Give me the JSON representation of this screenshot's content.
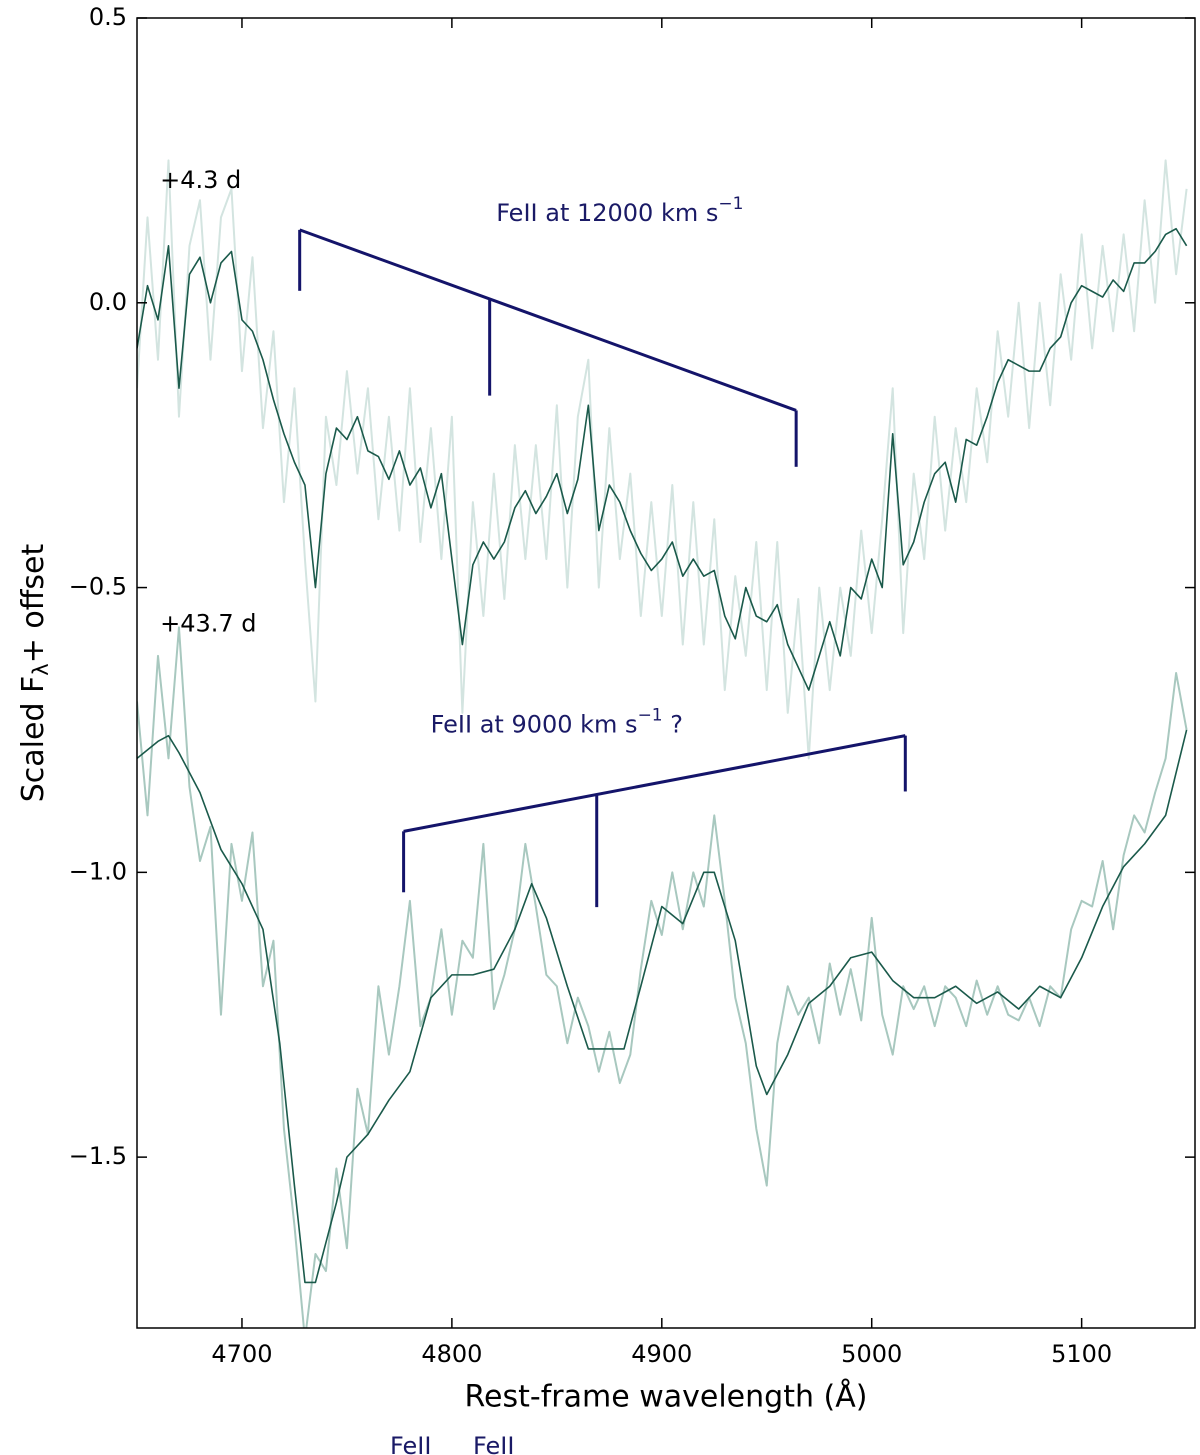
{
  "chart_data": {
    "type": "line",
    "xlabel": "Rest-frame wavelength (Å)",
    "ylabel": {
      "text": "Scaled F",
      "sub": "λ",
      "suffix": "+ offset"
    },
    "xlim": [
      4650,
      5154
    ],
    "ylim": [
      -1.8,
      0.5
    ],
    "xticks": [
      4700,
      4800,
      4900,
      5000,
      5100
    ],
    "yticks": [
      {
        "value": -1.5,
        "label": "−1.5"
      },
      {
        "value": -1.0,
        "label": "−1.0"
      },
      {
        "value": -0.5,
        "label": "−0.5"
      },
      {
        "value": 0,
        "label": "0.0"
      },
      0.5
    ],
    "x": [
      4650,
      4655,
      4660,
      4665,
      4670,
      4675,
      4680,
      4685,
      4690,
      4695,
      4700,
      4705,
      4710,
      4715,
      4720,
      4725,
      4730,
      4735,
      4740,
      4745,
      4750,
      4755,
      4760,
      4765,
      4770,
      4775,
      4780,
      4785,
      4790,
      4795,
      4800,
      4805,
      4810,
      4815,
      4820,
      4825,
      4830,
      4835,
      4840,
      4845,
      4850,
      4855,
      4860,
      4865,
      4870,
      4875,
      4880,
      4885,
      4890,
      4895,
      4900,
      4905,
      4910,
      4915,
      4920,
      4925,
      4930,
      4935,
      4940,
      4945,
      4950,
      4955,
      4960,
      4965,
      4970,
      4975,
      4980,
      4985,
      4990,
      4995,
      5000,
      5005,
      5010,
      5015,
      5020,
      5025,
      5030,
      5035,
      5040,
      5045,
      5050,
      5055,
      5060,
      5065,
      5070,
      5075,
      5080,
      5085,
      5090,
      5095,
      5100,
      5105,
      5110,
      5115,
      5120,
      5125,
      5130,
      5135,
      5140,
      5145,
      5150
    ],
    "series": [
      {
        "color": "#d3e4e0",
        "values": [
          -0.15,
          0.15,
          -0.1,
          0.25,
          -0.2,
          0.1,
          0.18,
          -0.1,
          0.15,
          0.2,
          -0.12,
          0.08,
          -0.22,
          -0.05,
          -0.35,
          -0.15,
          -0.45,
          -0.7,
          -0.2,
          -0.32,
          -0.12,
          -0.3,
          -0.15,
          -0.38,
          -0.2,
          -0.4,
          -0.15,
          -0.42,
          -0.22,
          -0.45,
          -0.2,
          -0.72,
          -0.35,
          -0.55,
          -0.3,
          -0.52,
          -0.25,
          -0.45,
          -0.25,
          -0.45,
          -0.18,
          -0.5,
          -0.2,
          -0.1,
          -0.5,
          -0.22,
          -0.45,
          -0.3,
          -0.55,
          -0.35,
          -0.55,
          -0.32,
          -0.6,
          -0.35,
          -0.6,
          -0.38,
          -0.68,
          -0.48,
          -0.62,
          -0.42,
          -0.68,
          -0.42,
          -0.72,
          -0.52,
          -0.8,
          -0.5,
          -0.68,
          -0.5,
          -0.62,
          -0.4,
          -0.58,
          -0.38,
          -0.15,
          -0.58,
          -0.3,
          -0.45,
          -0.2,
          -0.4,
          -0.22,
          -0.35,
          -0.15,
          -0.28,
          -0.05,
          -0.2,
          0.0,
          -0.22,
          0.0,
          -0.18,
          0.05,
          -0.1,
          0.12,
          -0.08,
          0.1,
          -0.05,
          0.12,
          -0.05,
          0.18,
          0.0,
          0.25,
          0.05,
          0.2
        ]
      },
      {
        "color": "#a8c8bf",
        "values": [
          -0.7,
          -0.9,
          -0.62,
          -0.8,
          -0.57,
          -0.85,
          -0.98,
          -0.92,
          -1.25,
          -0.95,
          -1.05,
          -0.93,
          -1.2,
          -1.12,
          -1.45,
          -1.62,
          -1.82,
          -1.67,
          -1.7,
          -1.52,
          -1.66,
          -1.38,
          -1.46,
          -1.2,
          -1.32,
          -1.2,
          -1.05,
          -1.27,
          -1.22,
          -1.1,
          -1.25,
          -1.12,
          -1.15,
          -0.95,
          -1.24,
          -1.18,
          -1.1,
          -0.95,
          -1.06,
          -1.18,
          -1.2,
          -1.3,
          -1.22,
          -1.27,
          -1.35,
          -1.28,
          -1.37,
          -1.32,
          -1.17,
          -1.05,
          -1.11,
          -1.0,
          -1.1,
          -1.0,
          -1.06,
          -0.9,
          -1.05,
          -1.22,
          -1.3,
          -1.45,
          -1.55,
          -1.3,
          -1.2,
          -1.25,
          -1.22,
          -1.3,
          -1.16,
          -1.25,
          -1.17,
          -1.26,
          -1.08,
          -1.25,
          -1.32,
          -1.2,
          -1.24,
          -1.2,
          -1.27,
          -1.2,
          -1.22,
          -1.27,
          -1.19,
          -1.25,
          -1.2,
          -1.25,
          -1.26,
          -1.22,
          -1.27,
          -1.2,
          -1.22,
          -1.1,
          -1.05,
          -1.06,
          -0.98,
          -1.1,
          -0.97,
          -0.9,
          -0.93,
          -0.86,
          -0.8,
          -0.65,
          -0.75
        ]
      },
      {
        "color": "#1b5a4b",
        "values": [
          -0.08,
          0.03,
          -0.03,
          0.1,
          -0.15,
          0.05,
          0.08,
          0.0,
          0.07,
          0.09,
          -0.03,
          -0.05,
          -0.1,
          -0.17,
          -0.23,
          -0.28,
          -0.32,
          -0.5,
          -0.3,
          -0.22,
          -0.24,
          -0.2,
          -0.26,
          -0.27,
          -0.31,
          -0.26,
          -0.32,
          -0.29,
          -0.36,
          -0.3,
          -0.45,
          -0.6,
          -0.46,
          -0.42,
          -0.45,
          -0.42,
          -0.36,
          -0.33,
          -0.37,
          -0.34,
          -0.3,
          -0.37,
          -0.31,
          -0.18,
          -0.4,
          -0.32,
          -0.35,
          -0.4,
          -0.44,
          -0.47,
          -0.45,
          -0.42,
          -0.48,
          -0.45,
          -0.48,
          -0.47,
          -0.55,
          -0.59,
          -0.5,
          -0.55,
          -0.56,
          -0.53,
          -0.6,
          -0.64,
          -0.68,
          -0.62,
          -0.56,
          -0.62,
          -0.5,
          -0.52,
          -0.45,
          -0.5,
          -0.23,
          -0.46,
          -0.42,
          -0.35,
          -0.3,
          -0.28,
          -0.35,
          -0.24,
          -0.25,
          -0.2,
          -0.14,
          -0.1,
          -0.11,
          -0.12,
          -0.12,
          -0.08,
          -0.06,
          0.0,
          0.03,
          0.02,
          0.01,
          0.04,
          0.02,
          0.07,
          0.07,
          0.09,
          0.12,
          0.13,
          0.1
        ]
      },
      {
        "color": "#1b5a4b",
        "x": [
          4650,
          4660,
          4665,
          4670,
          4680,
          4690,
          4700,
          4710,
          4718,
          4725,
          4730,
          4735,
          4740,
          4745,
          4750,
          4760,
          4770,
          4780,
          4790,
          4800,
          4810,
          4820,
          4830,
          4838,
          4845,
          4855,
          4865,
          4875,
          4882,
          4890,
          4900,
          4910,
          4920,
          4925,
          4935,
          4945,
          4950,
          4960,
          4970,
          4980,
          4990,
          5000,
          5010,
          5020,
          5030,
          5040,
          5050,
          5060,
          5070,
          5080,
          5090,
          5100,
          5110,
          5120,
          5130,
          5140,
          5150
        ],
        "values": [
          -0.8,
          -0.77,
          -0.76,
          -0.79,
          -0.86,
          -0.96,
          -1.02,
          -1.1,
          -1.3,
          -1.55,
          -1.72,
          -1.72,
          -1.65,
          -1.58,
          -1.5,
          -1.46,
          -1.4,
          -1.35,
          -1.22,
          -1.18,
          -1.18,
          -1.17,
          -1.1,
          -1.02,
          -1.08,
          -1.2,
          -1.31,
          -1.31,
          -1.31,
          -1.2,
          -1.06,
          -1.09,
          -1.0,
          -1.0,
          -1.12,
          -1.34,
          -1.39,
          -1.32,
          -1.23,
          -1.2,
          -1.15,
          -1.14,
          -1.19,
          -1.22,
          -1.22,
          -1.2,
          -1.23,
          -1.21,
          -1.24,
          -1.2,
          -1.22,
          -1.15,
          -1.06,
          -0.99,
          -0.95,
          -0.9,
          -0.75
        ]
      }
    ],
    "annotations": [
      {
        "text": "+4.3 d",
        "x": 4661,
        "y": 0.214,
        "color": "#000000",
        "anchor": "start"
      },
      {
        "text": "+43.7 d",
        "x": 4661,
        "y": -0.565,
        "color": "#000000",
        "anchor": "start"
      },
      {
        "text": "FeII at 12000 km s",
        "sup": "−1",
        "x": 4880,
        "y": 0.156,
        "color": "#1a1a66",
        "anchor": "middle"
      },
      {
        "text": "FeII at 9000 km s",
        "sup": "−1",
        "suffix": " ?",
        "x": 4850,
        "y": -0.742,
        "color": "#1a1a66",
        "anchor": "middle"
      }
    ],
    "brackets": [
      {
        "x": [
          4727.5,
          4818,
          4964
        ],
        "top": [
          0.128,
          0.007,
          -0.189
        ],
        "bottom": [
          0.021,
          -0.163,
          -0.288
        ],
        "color": "#14146a"
      },
      {
        "x": [
          4777,
          4869,
          5016
        ],
        "top": [
          -0.928,
          -0.863,
          -0.76
        ],
        "bottom": [
          -1.035,
          -1.061,
          -0.858
        ],
        "color": "#14146a"
      }
    ],
    "footer_labels": [
      "FeII",
      "FeII"
    ]
  }
}
